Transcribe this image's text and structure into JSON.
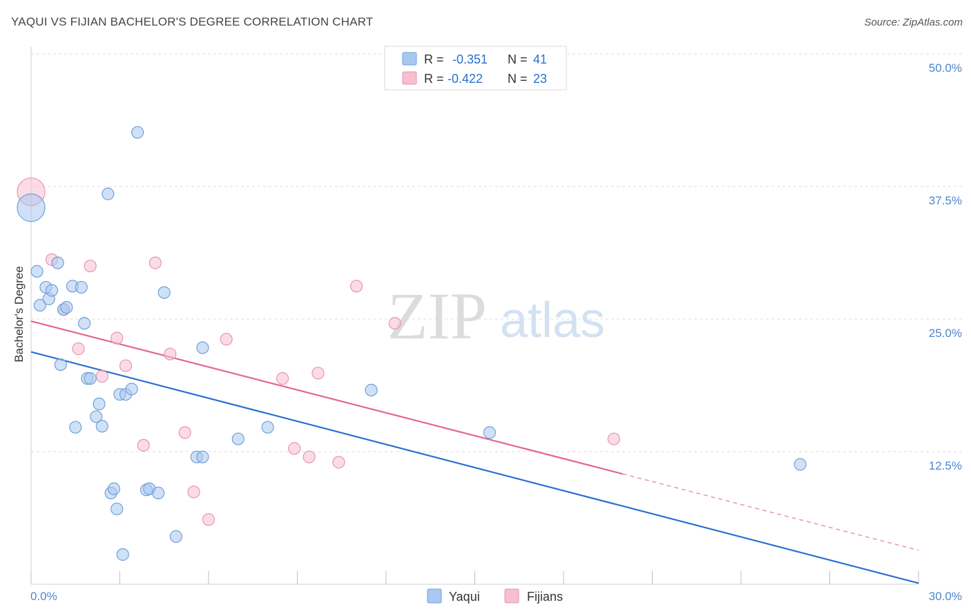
{
  "header": {
    "title": "YAQUI VS FIJIAN BACHELOR'S DEGREE CORRELATION CHART",
    "source": "Source: ZipAtlas.com"
  },
  "watermark": {
    "zip": "ZIP",
    "atlas": "atlas"
  },
  "legend_top": {
    "rows": [
      {
        "r_label": "R =",
        "r_value": "-0.351",
        "n_label": "N =",
        "n_value": "41"
      },
      {
        "r_label": "R =",
        "r_value": "-0.422",
        "n_label": "N =",
        "n_value": "23"
      }
    ]
  },
  "legend_bottom": {
    "yaqui": "Yaqui",
    "fijians": "Fijians"
  },
  "colors": {
    "yaqui_fill": "#a9c8f0",
    "yaqui_stroke": "#6f9fd8",
    "yaqui_line": "#2a6fd0",
    "fijians_fill": "#f7bfd0",
    "fijians_stroke": "#e993ae",
    "fijians_line": "#e06690",
    "value_text": "#2a6fd0",
    "axis_text": "#4a86d0"
  },
  "chart_data": {
    "type": "scatter",
    "title": "YAQUI VS FIJIAN BACHELOR'S DEGREE CORRELATION CHART",
    "xlabel": "",
    "ylabel": "Bachelor's Degree",
    "xlim": [
      0,
      30
    ],
    "ylim": [
      0,
      50
    ],
    "x_tick_labels": [
      "0.0%",
      "30.0%"
    ],
    "y_ticks": [
      {
        "value": 12.5,
        "label": "12.5%"
      },
      {
        "value": 25.0,
        "label": "25.0%"
      },
      {
        "value": 37.5,
        "label": "37.5%"
      },
      {
        "value": 50.0,
        "label": "50.0%"
      }
    ],
    "series": [
      {
        "name": "Yaqui",
        "r": -0.351,
        "n": 41,
        "trend": {
          "x0": 0,
          "y0": 21.9,
          "x1": 30,
          "y1": 0.1
        },
        "points": [
          {
            "x": 0.0,
            "y": 35.5,
            "big": true
          },
          {
            "x": 0.2,
            "y": 29.5
          },
          {
            "x": 0.3,
            "y": 26.3
          },
          {
            "x": 0.5,
            "y": 28.0
          },
          {
            "x": 0.6,
            "y": 26.9
          },
          {
            "x": 0.7,
            "y": 27.7
          },
          {
            "x": 0.9,
            "y": 30.3
          },
          {
            "x": 1.0,
            "y": 20.7
          },
          {
            "x": 1.1,
            "y": 25.9
          },
          {
            "x": 1.2,
            "y": 26.1
          },
          {
            "x": 1.4,
            "y": 28.1
          },
          {
            "x": 1.5,
            "y": 14.8
          },
          {
            "x": 1.7,
            "y": 28.0
          },
          {
            "x": 1.8,
            "y": 24.6
          },
          {
            "x": 1.9,
            "y": 19.4
          },
          {
            "x": 2.0,
            "y": 19.4
          },
          {
            "x": 2.2,
            "y": 15.8
          },
          {
            "x": 2.3,
            "y": 17.0
          },
          {
            "x": 2.4,
            "y": 14.9
          },
          {
            "x": 2.6,
            "y": 36.8
          },
          {
            "x": 2.7,
            "y": 8.6
          },
          {
            "x": 2.8,
            "y": 9.0
          },
          {
            "x": 2.9,
            "y": 7.1
          },
          {
            "x": 3.0,
            "y": 17.9
          },
          {
            "x": 3.1,
            "y": 2.8
          },
          {
            "x": 3.2,
            "y": 17.9
          },
          {
            "x": 3.4,
            "y": 18.4
          },
          {
            "x": 3.6,
            "y": 42.6
          },
          {
            "x": 3.9,
            "y": 8.9
          },
          {
            "x": 4.0,
            "y": 9.0
          },
          {
            "x": 4.3,
            "y": 8.6
          },
          {
            "x": 4.5,
            "y": 27.5
          },
          {
            "x": 4.9,
            "y": 4.5
          },
          {
            "x": 5.6,
            "y": 12.0
          },
          {
            "x": 5.8,
            "y": 12.0
          },
          {
            "x": 5.8,
            "y": 22.3
          },
          {
            "x": 7.0,
            "y": 13.7
          },
          {
            "x": 8.0,
            "y": 14.8
          },
          {
            "x": 11.5,
            "y": 18.3
          },
          {
            "x": 15.5,
            "y": 14.3
          },
          {
            "x": 26.0,
            "y": 11.3
          }
        ]
      },
      {
        "name": "Fijians",
        "r": -0.422,
        "n": 23,
        "trend": {
          "x0": 0,
          "y0": 24.8,
          "x1": 20.0,
          "y1": 10.4,
          "dash_to_x": 30,
          "dash_to_y": 3.2
        },
        "points": [
          {
            "x": 0.0,
            "y": 37.0,
            "big": true
          },
          {
            "x": 0.7,
            "y": 30.6
          },
          {
            "x": 1.1,
            "y": 25.9
          },
          {
            "x": 1.6,
            "y": 22.2
          },
          {
            "x": 2.0,
            "y": 30.0
          },
          {
            "x": 2.4,
            "y": 19.6
          },
          {
            "x": 2.9,
            "y": 23.2
          },
          {
            "x": 3.2,
            "y": 20.6
          },
          {
            "x": 3.8,
            "y": 13.1
          },
          {
            "x": 4.2,
            "y": 30.3
          },
          {
            "x": 4.7,
            "y": 21.7
          },
          {
            "x": 5.2,
            "y": 14.3
          },
          {
            "x": 5.5,
            "y": 8.7
          },
          {
            "x": 6.0,
            "y": 6.1
          },
          {
            "x": 6.6,
            "y": 23.1
          },
          {
            "x": 8.5,
            "y": 19.4
          },
          {
            "x": 8.9,
            "y": 12.8
          },
          {
            "x": 9.4,
            "y": 12.0
          },
          {
            "x": 9.7,
            "y": 19.9
          },
          {
            "x": 10.4,
            "y": 11.5
          },
          {
            "x": 11.0,
            "y": 28.1
          },
          {
            "x": 12.3,
            "y": 24.6
          },
          {
            "x": 19.7,
            "y": 13.7
          }
        ]
      }
    ]
  }
}
